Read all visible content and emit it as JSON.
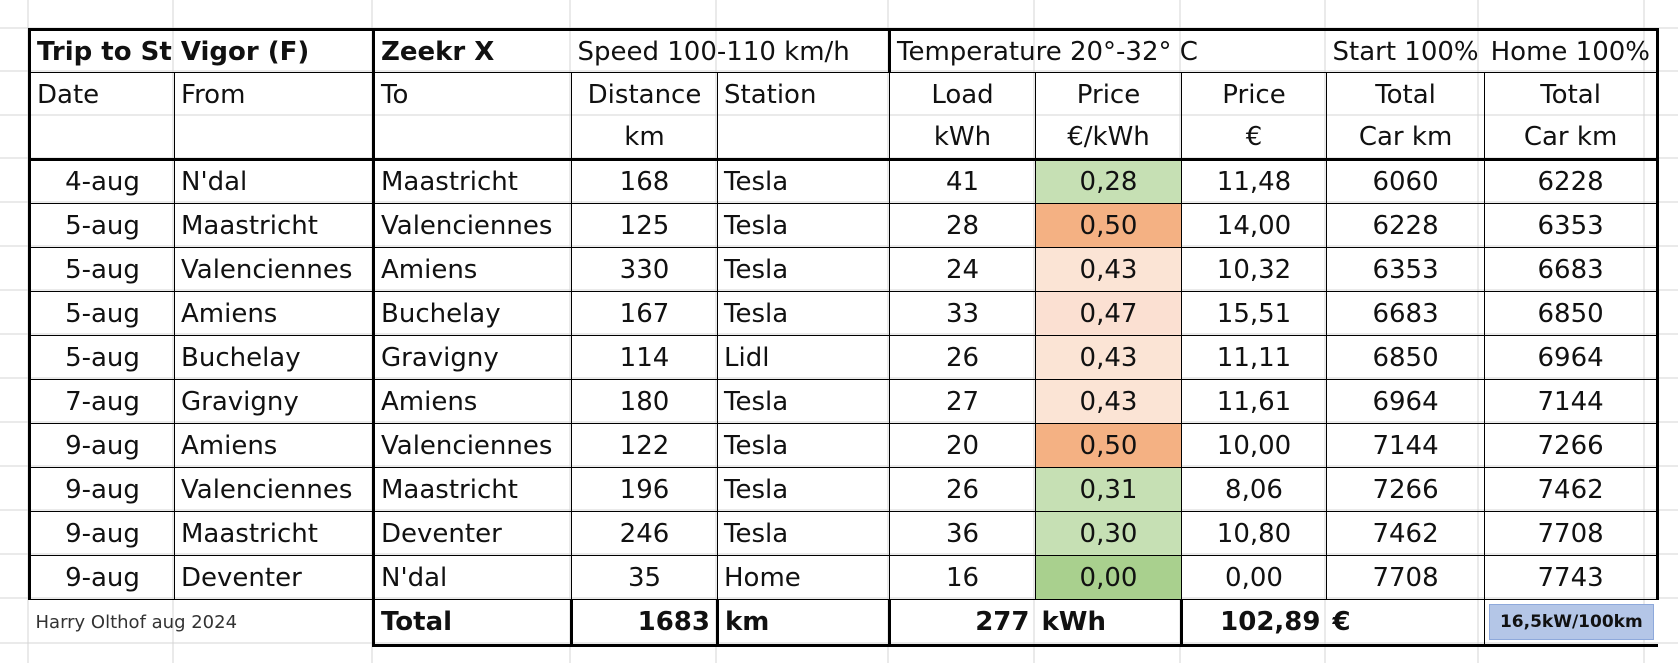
{
  "title": {
    "trip": "Trip to St Vigor (F)",
    "car": "Zeekr X",
    "speed": "Speed 100-110 km/h",
    "temperature": "Temperature 20°-32° C",
    "start": "Start 100%",
    "home": "Home 100%"
  },
  "headers_row1": [
    "Date",
    "From",
    "To",
    "Distance",
    "Station",
    "Load",
    "Price",
    "Price",
    "Total",
    "Total"
  ],
  "headers_row2": [
    "",
    "",
    "",
    "km",
    "",
    "kWh",
    "€/kWh",
    "€",
    "Car km",
    "Car km"
  ],
  "rows": [
    {
      "date": "4-aug",
      "from": "N'dal",
      "to": "Maastricht",
      "distance": "168",
      "station": "Tesla",
      "load": "41",
      "price_kwh": "0,28",
      "price_eur": "11,48",
      "start_km": "6060",
      "end_km": "6228",
      "price_color": "#c6e0b4"
    },
    {
      "date": "5-aug",
      "from": "Maastricht",
      "to": "Valenciennes",
      "distance": "125",
      "station": "Tesla",
      "load": "28",
      "price_kwh": "0,50",
      "price_eur": "14,00",
      "start_km": "6228",
      "end_km": "6353",
      "price_color": "#f4b183"
    },
    {
      "date": "5-aug",
      "from": "Valenciennes",
      "to": "Amiens",
      "distance": "330",
      "station": "Tesla",
      "load": "24",
      "price_kwh": "0,43",
      "price_eur": "10,32",
      "start_km": "6353",
      "end_km": "6683",
      "price_color": "#fbe4d5"
    },
    {
      "date": "5-aug",
      "from": "Amiens",
      "to": "Buchelay",
      "distance": "167",
      "station": "Tesla",
      "load": "33",
      "price_kwh": "0,47",
      "price_eur": "15,51",
      "start_km": "6683",
      "end_km": "6850",
      "price_color": "#fbe0d2"
    },
    {
      "date": "5-aug",
      "from": "Buchelay",
      "to": "Gravigny",
      "distance": "114",
      "station": "Lidl",
      "load": "26",
      "price_kwh": "0,43",
      "price_eur": "11,11",
      "start_km": "6850",
      "end_km": "6964",
      "price_color": "#fbe4d5"
    },
    {
      "date": "7-aug",
      "from": "Gravigny",
      "to": "Amiens",
      "distance": "180",
      "station": "Tesla",
      "load": "27",
      "price_kwh": "0,43",
      "price_eur": "11,61",
      "start_km": "6964",
      "end_km": "7144",
      "price_color": "#fbe4d5"
    },
    {
      "date": "9-aug",
      "from": "Amiens",
      "to": "Valenciennes",
      "distance": "122",
      "station": "Tesla",
      "load": "20",
      "price_kwh": "0,50",
      "price_eur": "10,00",
      "start_km": "7144",
      "end_km": "7266",
      "price_color": "#f4b183"
    },
    {
      "date": "9-aug",
      "from": "Valenciennes",
      "to": "Maastricht",
      "distance": "196",
      "station": "Tesla",
      "load": "26",
      "price_kwh": "0,31",
      "price_eur": "8,06",
      "start_km": "7266",
      "end_km": "7462",
      "price_color": "#c6e0b4"
    },
    {
      "date": "9-aug",
      "from": "Maastricht",
      "to": "Deventer",
      "distance": "246",
      "station": "Tesla",
      "load": "36",
      "price_kwh": "0,30",
      "price_eur": "10,80",
      "start_km": "7462",
      "end_km": "7708",
      "price_color": "#c6e0b4"
    },
    {
      "date": "9-aug",
      "from": "Deventer",
      "to": "N'dal",
      "distance": "35",
      "station": "Home",
      "load": "16",
      "price_kwh": "0,00",
      "price_eur": "0,00",
      "start_km": "7708",
      "end_km": "7743",
      "price_color": "#a9d08e"
    }
  ],
  "footer": {
    "credit": "Harry Olthof aug 2024",
    "total_label": "Total",
    "total_distance": "1683",
    "distance_unit": "km",
    "total_load": "277",
    "load_unit": "kWh",
    "total_price": "102,89",
    "price_unit": "€",
    "consumption": "16,5kW/100km"
  }
}
